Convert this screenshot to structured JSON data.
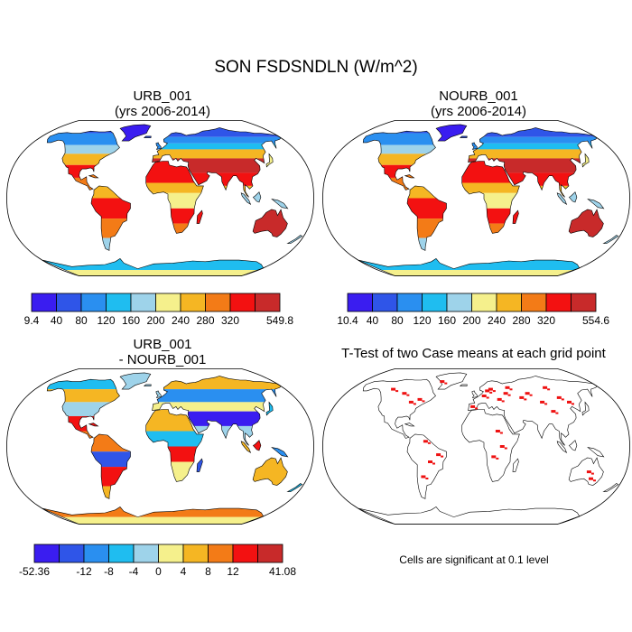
{
  "title": "SON FSDSNDLN (W/m^2)",
  "panels": [
    {
      "id": "p1",
      "title_line1": "URB_001",
      "title_line2": "(yrs 2006-2014)",
      "type": "field"
    },
    {
      "id": "p2",
      "title_line1": "NOURB_001",
      "title_line2": "(yrs 2006-2014)",
      "type": "field"
    },
    {
      "id": "p3",
      "title_line1": "URB_001",
      "title_line2": "- NOURB_001",
      "type": "difference"
    },
    {
      "id": "p4",
      "title_line1": "T-Test of two Case means at each grid point",
      "type": "significance",
      "note": "Cells are significant at 0.1 level"
    }
  ],
  "colorbars": [
    {
      "id": "cbar1",
      "labels": [
        "9.4",
        "40",
        "80",
        "120",
        "160",
        "200",
        "240",
        "280",
        "320",
        "549.8"
      ],
      "colors": [
        "#3a1df0",
        "#2f55e8",
        "#2a8ff0",
        "#1fbdf0",
        "#9ed3ea",
        "#f5f08c",
        "#f5b623",
        "#f37b17",
        "#f31111",
        "#c82a2a"
      ]
    },
    {
      "id": "cbar2",
      "labels": [
        "10.4",
        "40",
        "80",
        "120",
        "160",
        "200",
        "240",
        "280",
        "320",
        "554.6"
      ],
      "colors": [
        "#3a1df0",
        "#2f55e8",
        "#2a8ff0",
        "#1fbdf0",
        "#9ed3ea",
        "#f5f08c",
        "#f5b623",
        "#f37b17",
        "#f31111",
        "#c82a2a"
      ]
    },
    {
      "id": "cbar3",
      "labels": [
        "-52.36",
        "-12",
        "-8",
        "-4",
        "0",
        "4",
        "8",
        "12",
        "41.08"
      ],
      "colors": [
        "#3a1df0",
        "#2f55e8",
        "#2a8ff0",
        "#1fbdf0",
        "#9ed3ea",
        "#f5f08c",
        "#f5b623",
        "#f37b17",
        "#f31111",
        "#c82a2a"
      ]
    }
  ],
  "colors": {
    "significant": "#ee1111",
    "coast": "#000000"
  }
}
